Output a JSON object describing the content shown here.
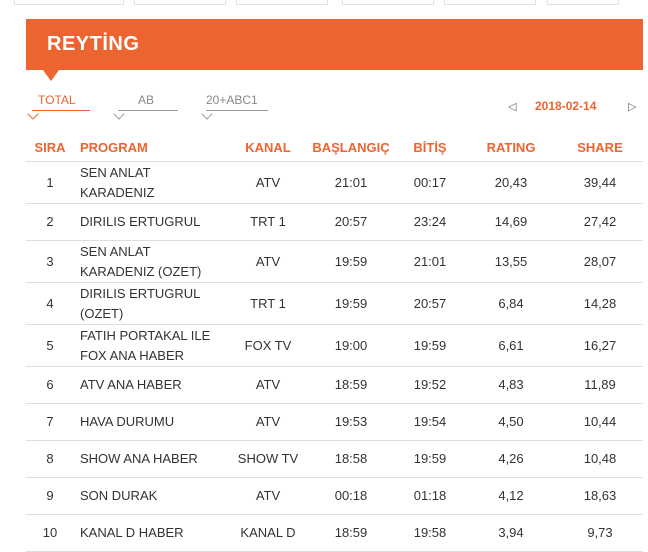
{
  "header": {
    "title": "REYTİNG"
  },
  "tabs": [
    {
      "label": "TOTAL",
      "active": true
    },
    {
      "label": "AB",
      "active": false
    },
    {
      "label": "20+ABC1",
      "active": false
    }
  ],
  "date_nav": {
    "prev_icon": "chevron-left-icon",
    "date": "2018-02-14",
    "next_icon": "chevron-right-icon"
  },
  "table": {
    "headers": {
      "rank": "SIRA",
      "program": "PROGRAM",
      "channel": "KANAL",
      "start": "BAŞLANGIÇ",
      "end": "BİTİŞ",
      "rating": "RATING",
      "share": "SHARE"
    },
    "rows": [
      {
        "rank": "1",
        "program": "SEN ANLAT KARADENIZ",
        "channel": "ATV",
        "start": "21:01",
        "end": "00:17",
        "rating": "20,43",
        "share": "39,44"
      },
      {
        "rank": "2",
        "program": "DIRILIS ERTUGRUL",
        "channel": "TRT 1",
        "start": "20:57",
        "end": "23:24",
        "rating": "14,69",
        "share": "27,42"
      },
      {
        "rank": "3",
        "program": "SEN ANLAT KARADENIZ (OZET)",
        "channel": "ATV",
        "start": "19:59",
        "end": "21:01",
        "rating": "13,55",
        "share": "28,07"
      },
      {
        "rank": "4",
        "program": "DIRILIS ERTUGRUL (OZET)",
        "channel": "TRT 1",
        "start": "19:59",
        "end": "20:57",
        "rating": "6,84",
        "share": "14,28"
      },
      {
        "rank": "5",
        "program": "FATIH PORTAKAL ILE FOX ANA HABER",
        "channel": "FOX TV",
        "start": "19:00",
        "end": "19:59",
        "rating": "6,61",
        "share": "16,27"
      },
      {
        "rank": "6",
        "program": "ATV ANA HABER",
        "channel": "ATV",
        "start": "18:59",
        "end": "19:52",
        "rating": "4,83",
        "share": "11,89"
      },
      {
        "rank": "7",
        "program": "HAVA DURUMU",
        "channel": "ATV",
        "start": "19:53",
        "end": "19:54",
        "rating": "4,50",
        "share": "10,44"
      },
      {
        "rank": "8",
        "program": "SHOW ANA HABER",
        "channel": "SHOW TV",
        "start": "18:58",
        "end": "19:59",
        "rating": "4,26",
        "share": "10,48"
      },
      {
        "rank": "9",
        "program": "SON DURAK",
        "channel": "ATV",
        "start": "00:18",
        "end": "01:18",
        "rating": "4,12",
        "share": "18,63"
      },
      {
        "rank": "10",
        "program": "KANAL D HABER",
        "channel": "KANAL D",
        "start": "18:59",
        "end": "19:58",
        "rating": "3,94",
        "share": "9,73"
      }
    ]
  },
  "colors": {
    "accent": "#ec6530",
    "text": "#333333",
    "divider": "#dddddd"
  }
}
